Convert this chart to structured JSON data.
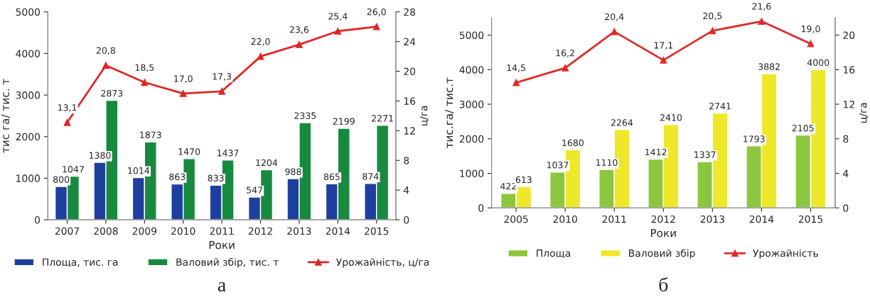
{
  "chart_data": [
    {
      "type": "bar",
      "categories": [
        "2007",
        "2008",
        "2009",
        "2010",
        "2011",
        "2012",
        "2013",
        "2014",
        "2015"
      ],
      "xlabel": "Роки",
      "ylabel": "тис га/ тис. т",
      "y2label": "ц/га",
      "ylim": [
        0,
        5000
      ],
      "yticks": [
        0,
        1000,
        2000,
        3000,
        4000,
        5000
      ],
      "y2lim": [
        0,
        28
      ],
      "y2ticks": [
        0,
        4,
        8,
        12,
        16,
        20,
        24,
        28
      ],
      "series": [
        {
          "name": "Площа, тис. га",
          "color": "#1f3f9f",
          "values": [
            800,
            1380,
            1014,
            863,
            833,
            547,
            988,
            865,
            874
          ]
        },
        {
          "name": "Валовий збір, тис. т",
          "color": "#178a40",
          "values": [
            1047,
            2873,
            1873,
            1470,
            1437,
            1204,
            2335,
            2199,
            2271
          ]
        },
        {
          "name": "Урожайність, ц/га",
          "type": "line",
          "axis": "y2",
          "color": "#e02626",
          "marker": "triangle",
          "values": [
            13.1,
            20.8,
            18.5,
            17.0,
            17.3,
            22.0,
            23.6,
            25.4,
            26.0
          ],
          "value_labels": [
            "13,1",
            "20,8",
            "18,5",
            "17,0",
            "17,3",
            "22,0",
            "23,6",
            "25,4",
            "26,0"
          ]
        }
      ],
      "data_labels": true,
      "legend": "bottom",
      "grid": false,
      "annotations": [
        "а"
      ]
    },
    {
      "type": "bar",
      "categories": [
        "2005",
        "2010",
        "2011",
        "2012",
        "2013",
        "2014",
        "2015"
      ],
      "xlabel": "Роки",
      "ylabel": "тис.га/ тис.т",
      "y2label": "ц/га",
      "ylim": [
        0,
        5500
      ],
      "yticks": [
        0,
        1000,
        2000,
        3000,
        4000,
        5000
      ],
      "y2lim": [
        0,
        22
      ],
      "y2ticks": [
        0,
        4,
        8,
        12,
        16,
        20
      ],
      "series": [
        {
          "name": "Площа",
          "color": "#8cc63e",
          "values": [
            422,
            1037,
            1110,
            1412,
            1337,
            1793,
            2105
          ]
        },
        {
          "name": "Валовий збір",
          "color": "#eee82a",
          "values": [
            613,
            1680,
            2264,
            2410,
            2741,
            3882,
            4000
          ]
        },
        {
          "name": "Урожайність",
          "type": "line",
          "axis": "y2",
          "color": "#e02a2a",
          "marker": "triangle",
          "values": [
            14.5,
            16.2,
            20.4,
            17.1,
            20.5,
            21.6,
            19.0
          ],
          "value_labels": [
            "14,5",
            "16,2",
            "20,4",
            "17,1",
            "20,5",
            "21,6",
            "19,0"
          ]
        }
      ],
      "data_labels": true,
      "legend": "bottom",
      "grid": false,
      "annotations": [
        "б"
      ]
    }
  ]
}
